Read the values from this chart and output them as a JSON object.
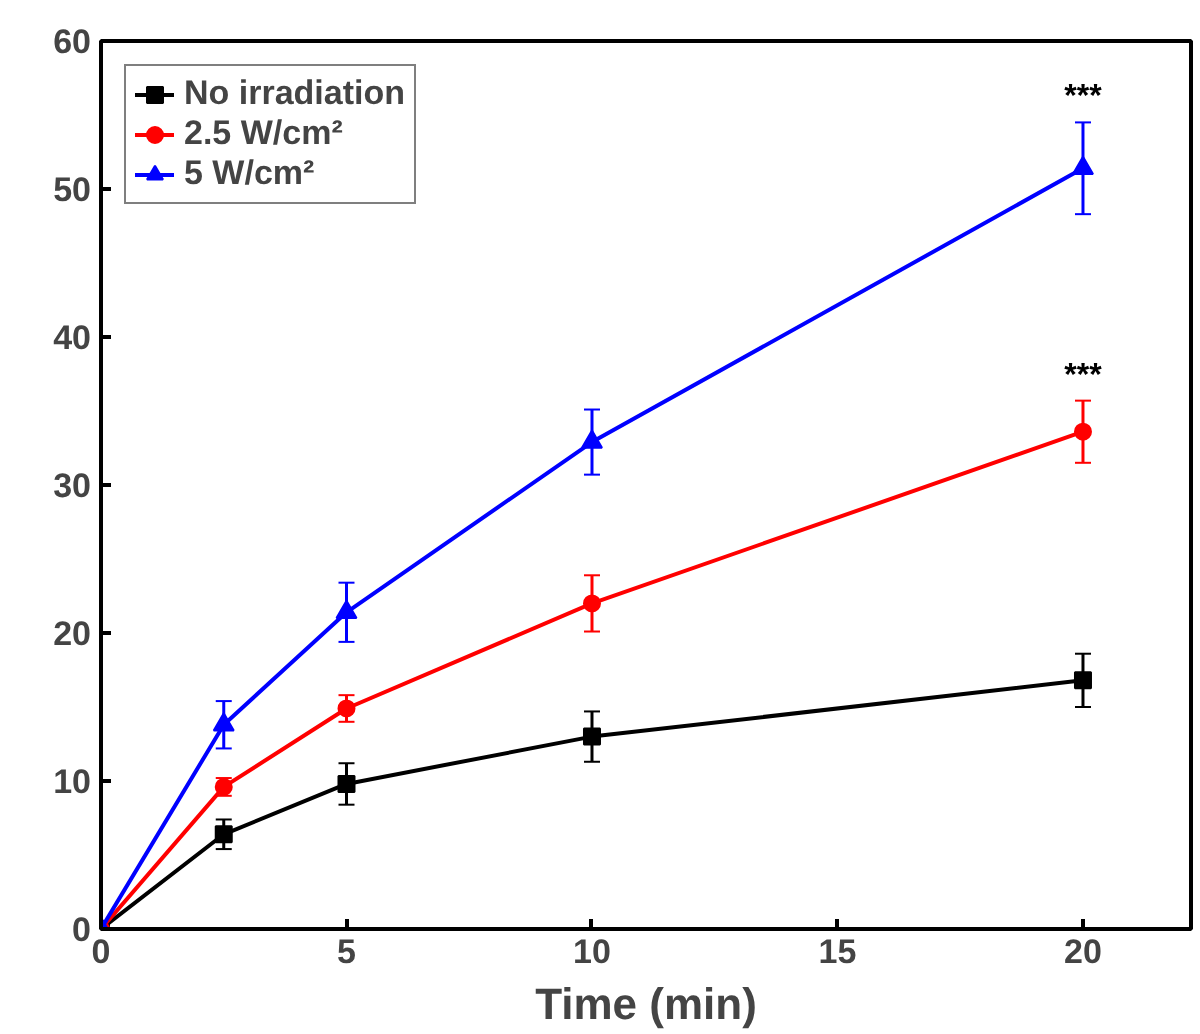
{
  "chart_data": {
    "type": "line",
    "xlabel": "Time (min)",
    "x": [
      0,
      2.5,
      5,
      10,
      20
    ],
    "xlim": [
      0,
      22.2
    ],
    "xticks": [
      0,
      5,
      10,
      15,
      20
    ],
    "ylim": [
      0,
      60
    ],
    "yticks": [
      0,
      10,
      20,
      30,
      40,
      50,
      60
    ],
    "series": [
      {
        "name": "No irradiation",
        "color": "#000000",
        "marker": "square",
        "values": [
          0,
          6.4,
          9.8,
          13,
          16.8
        ],
        "errors": [
          null,
          1,
          1.4,
          1.7,
          1.8
        ]
      },
      {
        "name": "2.5 W/cm²",
        "color": "#ff0000",
        "marker": "circle",
        "values": [
          0,
          9.6,
          14.9,
          22,
          33.6
        ],
        "errors": [
          null,
          0.6,
          0.9,
          1.9,
          2.1
        ]
      },
      {
        "name": "5 W/cm²",
        "color": "#0000ff",
        "marker": "triangle",
        "values": [
          0,
          13.8,
          21.4,
          32.9,
          51.4
        ],
        "errors": [
          null,
          1.6,
          2,
          2.2,
          3.1
        ]
      }
    ],
    "annotations": [
      "***",
      "***"
    ],
    "legend": "top left",
    "grid": false,
    "line_style": "solid"
  }
}
